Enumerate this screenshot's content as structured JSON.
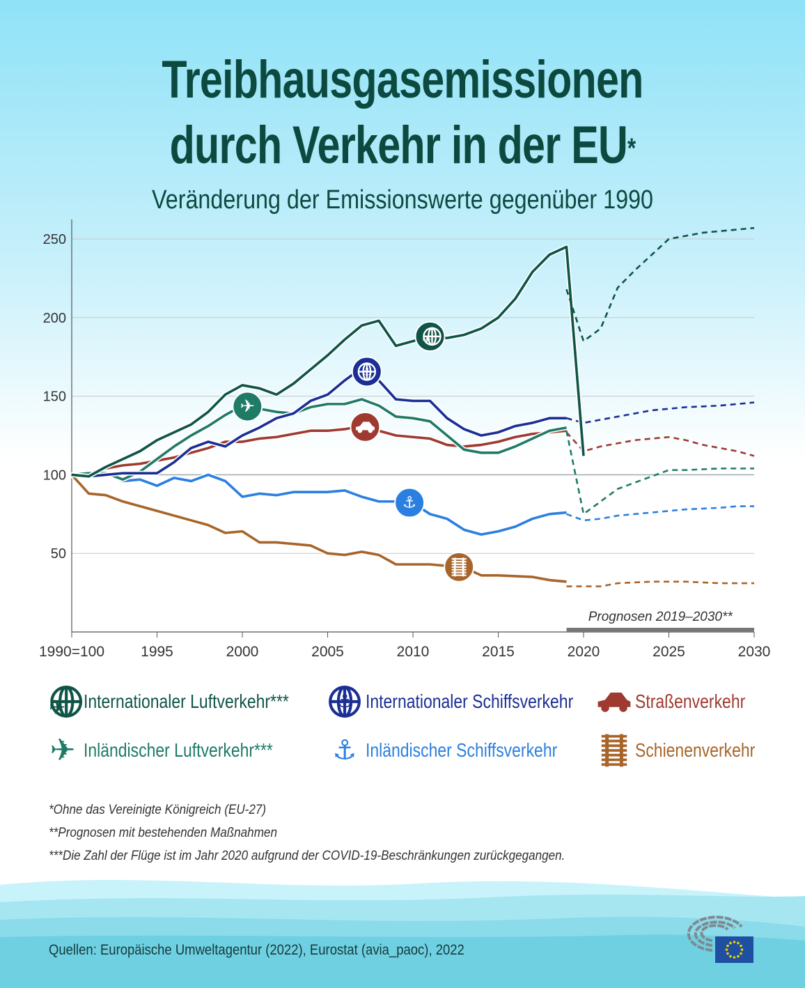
{
  "title_line1": "Treibhausgasemissionen",
  "title_line2": "durch Verkehr in der EU",
  "title_mark": "*",
  "subtitle": "Veränderung der Emissionswerte gegenüber 1990",
  "chart_data": {
    "type": "line",
    "title": "Treibhausgasemissionen durch Verkehr in der EU*",
    "subtitle": "Veränderung der Emissionswerte gegenüber 1990",
    "xlim": [
      1990,
      2030
    ],
    "ylim": [
      0,
      260
    ],
    "x_ticks": [
      1990,
      1995,
      2000,
      2005,
      2010,
      2015,
      2020,
      2025,
      2030
    ],
    "x_tick_labels": [
      "1990=100",
      "1995",
      "2000",
      "2005",
      "2010",
      "2015",
      "2020",
      "2025",
      "2030"
    ],
    "y_ticks": [
      50,
      100,
      150,
      200,
      250
    ],
    "grid": "horizontal",
    "annotation": "Prognosen 2019–2030**",
    "forecast_range": [
      2019,
      2030
    ],
    "legend_position": "bottom",
    "series": [
      {
        "name": "Internationaler Luftverkehr***",
        "color": "#0f5446",
        "icon": "globe-plane-icon",
        "icon_year": 2011,
        "x": [
          1990,
          1991,
          1992,
          1993,
          1994,
          1995,
          1996,
          1997,
          1998,
          1999,
          2000,
          2001,
          2002,
          2003,
          2004,
          2005,
          2006,
          2007,
          2008,
          2009,
          2010,
          2011,
          2012,
          2013,
          2014,
          2015,
          2016,
          2017,
          2018,
          2019,
          2020
        ],
        "values": [
          100,
          99,
          105,
          110,
          115,
          122,
          127,
          132,
          140,
          151,
          157,
          155,
          151,
          158,
          167,
          176,
          186,
          195,
          198,
          182,
          185,
          188,
          187,
          189,
          193,
          200,
          212,
          229,
          240,
          245,
          112
        ],
        "forecast_x": [
          2019,
          2020,
          2021,
          2022,
          2023,
          2024,
          2025,
          2026,
          2027,
          2028,
          2029,
          2030
        ],
        "forecast": [
          218,
          185,
          193,
          219,
          230,
          240,
          250,
          252,
          254,
          255,
          256,
          257
        ]
      },
      {
        "name": "Internationaler Schiffsverkehr",
        "color": "#1a2e94",
        "icon": "globe-anchor-icon",
        "icon_year": 2007.3,
        "x": [
          1990,
          1991,
          1992,
          1993,
          1994,
          1995,
          1996,
          1997,
          1998,
          1999,
          2000,
          2001,
          2002,
          2003,
          2004,
          2005,
          2006,
          2007,
          2008,
          2009,
          2010,
          2011,
          2012,
          2013,
          2014,
          2015,
          2016,
          2017,
          2018,
          2019
        ],
        "values": [
          100,
          99,
          100,
          101,
          101,
          101,
          108,
          117,
          121,
          118,
          125,
          130,
          136,
          139,
          147,
          151,
          160,
          168,
          160,
          148,
          147,
          147,
          136,
          129,
          125,
          127,
          131,
          133,
          136,
          136
        ],
        "forecast_x": [
          2019,
          2020,
          2021,
          2022,
          2023,
          2024,
          2025,
          2026,
          2027,
          2028,
          2029,
          2030
        ],
        "forecast": [
          136,
          133,
          135,
          137,
          139,
          141,
          142,
          143,
          143.5,
          144,
          145,
          146
        ]
      },
      {
        "name": "Straßenverkehr",
        "color": "#9e3a2f",
        "icon": "car-icon",
        "icon_year": 2007.2,
        "x": [
          1990,
          1991,
          1992,
          1993,
          1994,
          1995,
          1996,
          1997,
          1998,
          1999,
          2000,
          2001,
          2002,
          2003,
          2004,
          2005,
          2006,
          2007,
          2008,
          2009,
          2010,
          2011,
          2012,
          2013,
          2014,
          2015,
          2016,
          2017,
          2018,
          2019
        ],
        "values": [
          100,
          101,
          104,
          106,
          107,
          109,
          111,
          114,
          117,
          121,
          121,
          123,
          124,
          126,
          128,
          128,
          129,
          131,
          128,
          125,
          124,
          123,
          119,
          118,
          119,
          121,
          124,
          126,
          127,
          128
        ],
        "forecast_x": [
          2019,
          2020,
          2021,
          2022,
          2023,
          2024,
          2025,
          2026,
          2027,
          2028,
          2029,
          2030
        ],
        "forecast": [
          127,
          115,
          118,
          120,
          122,
          123,
          124,
          122,
          119,
          117,
          115,
          112
        ]
      },
      {
        "name": "Inländischer Luftverkehr***",
        "color": "#1f7a66",
        "icon": "plane-icon",
        "icon_year": 2000.3,
        "x": [
          1990,
          1991,
          1992,
          1993,
          1994,
          1995,
          1996,
          1997,
          1998,
          1999,
          2000,
          2001,
          2002,
          2003,
          2004,
          2005,
          2006,
          2007,
          2008,
          2009,
          2010,
          2011,
          2012,
          2013,
          2014,
          2015,
          2016,
          2017,
          2018,
          2019
        ],
        "values": [
          100,
          101,
          101,
          97,
          102,
          110,
          118,
          125,
          131,
          138,
          144,
          142,
          140,
          139,
          143,
          145,
          145,
          148,
          144,
          137,
          136,
          134,
          125,
          116,
          114,
          114,
          118,
          123,
          128,
          130
        ],
        "forecast_x": [
          2019,
          2020,
          2021,
          2022,
          2023,
          2024,
          2025,
          2026,
          2027,
          2028,
          2029,
          2030
        ],
        "forecast": [
          128,
          75,
          83,
          91,
          95,
          99,
          103,
          103,
          103.5,
          104,
          104,
          104
        ]
      },
      {
        "name": "Inländischer Schiffsverkehr",
        "color": "#2b7fe0",
        "icon": "anchor-icon",
        "icon_year": 2009.8,
        "x": [
          1990,
          1991,
          1992,
          1993,
          1994,
          1995,
          1996,
          1997,
          1998,
          1999,
          2000,
          2001,
          2002,
          2003,
          2004,
          2005,
          2006,
          2007,
          2008,
          2009,
          2010,
          2011,
          2012,
          2013,
          2014,
          2015,
          2016,
          2017,
          2018,
          2019
        ],
        "values": [
          100,
          101,
          101,
          96,
          97,
          93,
          98,
          96,
          100,
          96,
          86,
          88,
          87,
          89,
          89,
          89,
          90,
          86,
          83,
          83,
          82,
          75,
          72,
          65,
          62,
          64,
          67,
          72,
          75,
          76
        ],
        "forecast_x": [
          2019,
          2020,
          2021,
          2022,
          2023,
          2024,
          2025,
          2026,
          2027,
          2028,
          2029,
          2030
        ],
        "forecast": [
          75,
          71,
          72,
          74,
          75,
          76,
          77,
          78,
          78.5,
          79,
          80,
          80
        ]
      },
      {
        "name": "Schienenverkehr",
        "color": "#a8652a",
        "icon": "rail-icon",
        "icon_year": 2012.7,
        "x": [
          1990,
          1991,
          1992,
          1993,
          1994,
          1995,
          1996,
          1997,
          1998,
          1999,
          2000,
          2001,
          2002,
          2003,
          2004,
          2005,
          2006,
          2007,
          2008,
          2009,
          2010,
          2011,
          2012,
          2013,
          2014,
          2015,
          2016,
          2017,
          2018,
          2019
        ],
        "values": [
          100,
          88,
          87,
          83,
          80,
          77,
          74,
          71,
          68,
          63,
          64,
          57,
          57,
          56,
          55,
          50,
          49,
          51,
          49,
          43,
          43,
          43,
          42,
          41,
          36,
          36,
          35.5,
          35,
          33,
          32
        ],
        "forecast_x": [
          2019,
          2020,
          2021,
          2022,
          2023,
          2024,
          2025,
          2026,
          2027,
          2028,
          2029,
          2030
        ],
        "forecast": [
          29,
          29,
          29,
          31,
          31.5,
          32,
          32,
          32,
          31.5,
          31,
          31,
          31
        ]
      }
    ]
  },
  "notes": [
    "*Ohne das Vereinigte Königreich (EU-27)",
    "**Prognosen mit bestehenden Maßnahmen",
    "***Die Zahl der Flüge ist im Jahr 2020 aufgrund der COVID-19-Beschränkungen zurückgegangen."
  ],
  "source": "Quellen: Europäische Umweltagentur (2022), Eurostat (avia_paoc), 2022",
  "logo": "European Parliament"
}
